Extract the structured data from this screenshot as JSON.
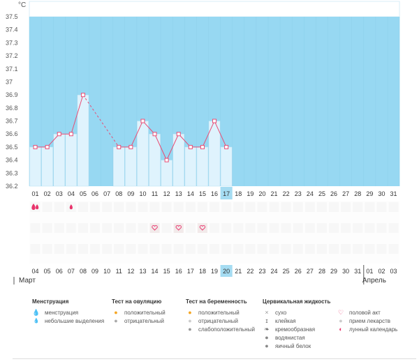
{
  "chart_data": {
    "type": "bar",
    "unit": "°C",
    "ylim": [
      36.2,
      37.5
    ],
    "yticks": [
      "37.5",
      "37.4",
      "37.3",
      "37.2",
      "37.1",
      "37",
      "36.9",
      "36.8",
      "36.7",
      "36.6",
      "36.5",
      "36.4",
      "36.3",
      "36.2"
    ],
    "x": [
      "01",
      "02",
      "03",
      "04",
      "05",
      "06",
      "07",
      "08",
      "09",
      "10",
      "11",
      "12",
      "13",
      "14",
      "15",
      "16",
      "17",
      "18",
      "19",
      "20",
      "21",
      "22",
      "23",
      "24",
      "25",
      "26",
      "27",
      "28",
      "29",
      "30",
      "31"
    ],
    "values": [
      36.5,
      36.5,
      36.6,
      36.6,
      36.9,
      null,
      null,
      36.5,
      36.5,
      36.7,
      36.6,
      36.4,
      36.6,
      36.5,
      36.5,
      36.7,
      36.5,
      null,
      null,
      null,
      null,
      null,
      null,
      null,
      null,
      null,
      null,
      null,
      null,
      null,
      null
    ],
    "highlight_day": "17",
    "bottom_days": [
      "04",
      "05",
      "06",
      "07",
      "08",
      "09",
      "10",
      "11",
      "12",
      "13",
      "14",
      "15",
      "16",
      "17",
      "18",
      "19",
      "20",
      "21",
      "22",
      "23",
      "24",
      "25",
      "26",
      "27",
      "28",
      "29",
      "30",
      "31",
      "01",
      "02",
      "03"
    ],
    "bottom_red": [
      0,
      6,
      7,
      13,
      14,
      20,
      21,
      27,
      28
    ],
    "bottom_highlight_index": 16,
    "months": {
      "march": "Март",
      "april": "Апрель"
    },
    "marks": {
      "menstruation": [
        "01"
      ],
      "small_discharge": [
        "04"
      ],
      "sex": [
        "11",
        "13",
        "15"
      ]
    }
  },
  "legend": {
    "groups": [
      {
        "title": "Менструация",
        "items": [
          {
            "icon": "drop-icon",
            "color": "#e8336b",
            "label": "менструация"
          },
          {
            "icon": "small-drop-icon",
            "color": "#e8336b",
            "label": "небольшие выделения"
          }
        ]
      },
      {
        "title": "Тест на овуляцию",
        "items": [
          {
            "icon": "ovulation-positive-icon",
            "color": "#f5a623",
            "label": "положительный"
          },
          {
            "icon": "ovulation-negative-icon",
            "color": "#aaaaaa",
            "label": "отрицательный"
          }
        ]
      },
      {
        "title": "Тест на беременность",
        "items": [
          {
            "icon": "pregnancy-positive-icon",
            "color": "#f5a623",
            "label": "положительный"
          },
          {
            "icon": "pregnancy-negative-icon",
            "color": "#cccccc",
            "label": "отрицательный"
          },
          {
            "icon": "pregnancy-weak-icon",
            "color": "#999999",
            "label": "слабоположительный"
          }
        ]
      },
      {
        "title": "Цервикальная жидкость",
        "items": [
          {
            "icon": "dry-icon",
            "color": "#999999",
            "label": "сухо"
          },
          {
            "icon": "sticky-icon",
            "color": "#666666",
            "label": "клейкая"
          },
          {
            "icon": "creamy-icon",
            "color": "#666666",
            "label": "кремообразная"
          },
          {
            "icon": "watery-icon",
            "color": "#888888",
            "label": "водянистая"
          },
          {
            "icon": "egg-white-icon",
            "color": "#888888",
            "label": "яичный белок"
          }
        ]
      },
      {
        "title": "",
        "items": [
          {
            "icon": "heart-icon",
            "color": "#e8336b",
            "label": "половой акт"
          },
          {
            "icon": "pill-icon",
            "color": "#cccccc",
            "label": "прием лекарств"
          },
          {
            "icon": "moon-icon",
            "color": "#e8336b",
            "label": "лунный календарь"
          }
        ]
      }
    ]
  }
}
